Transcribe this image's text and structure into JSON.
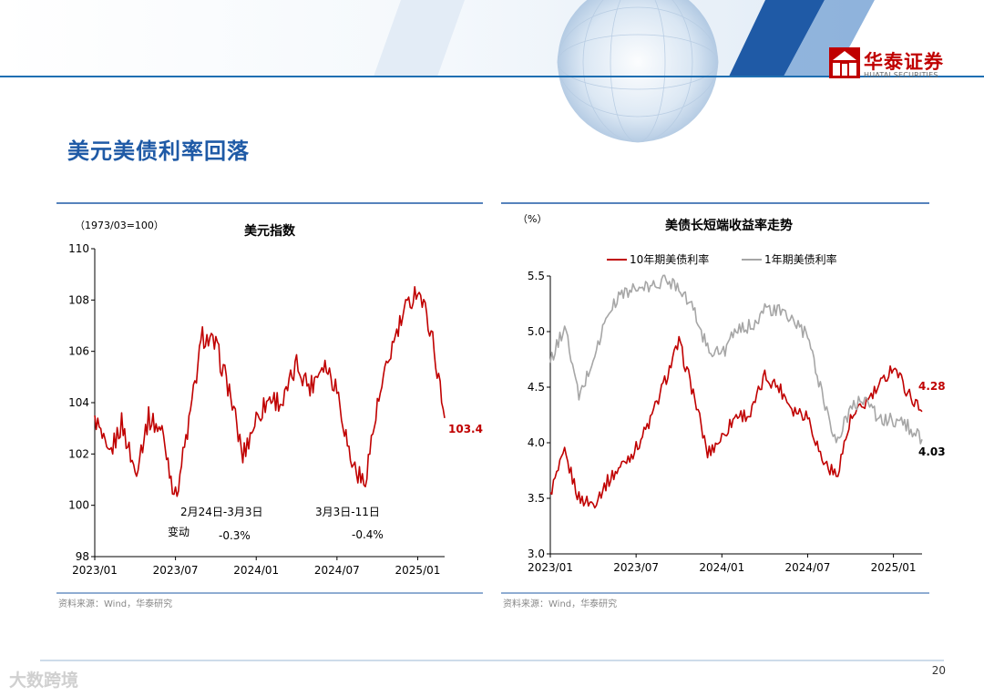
{
  "page": {
    "title": "美元美债利率回落",
    "number": "20",
    "watermark": "大数跨境",
    "logo": {
      "name": "华泰证券",
      "sub": "HUATAI SECURITIES"
    },
    "colors": {
      "accent": "#1f5aa6",
      "brand_red": "#c00000",
      "header_line": "#1f6fb2"
    }
  },
  "chart_data": [
    {
      "type": "line",
      "title": "美元指数",
      "unit_label": "（1973/03=100）",
      "ylim": [
        98,
        110
      ],
      "yticks": [
        "98",
        "100",
        "102",
        "104",
        "106",
        "108",
        "110"
      ],
      "x_range": [
        "2023-01",
        "2025-03"
      ],
      "xtick_labels": [
        "2023/01",
        "2023/07",
        "2024/01",
        "2024/07",
        "2025/01"
      ],
      "series": [
        {
          "color": "#c00000",
          "x": [
            "2023-01",
            "2023-02",
            "2023-03",
            "2023-04",
            "2023-05",
            "2023-06",
            "2023-07",
            "2023-08",
            "2023-09",
            "2023-10",
            "2023-11",
            "2023-12",
            "2024-01",
            "2024-02",
            "2024-03",
            "2024-04",
            "2024-05",
            "2024-06",
            "2024-07",
            "2024-08",
            "2024-09",
            "2024-10",
            "2024-11",
            "2024-12",
            "2025-01",
            "2025-02",
            "2025-03"
          ],
          "values": [
            103.5,
            101.8,
            103.2,
            101.3,
            103.4,
            102.9,
            100.3,
            103.2,
            106.6,
            106.2,
            104.5,
            101.9,
            103.4,
            104.2,
            104.0,
            105.5,
            104.6,
            105.6,
            104.6,
            101.8,
            100.8,
            103.8,
            106.0,
            107.5,
            108.5,
            106.8,
            103.4
          ]
        }
      ],
      "annotations": [
        {
          "lines": [
            "2月24日-3月3日",
            "变动",
            "-0.3%"
          ]
        },
        {
          "lines": [
            "3月3日-11日",
            "-0.4%"
          ]
        },
        {
          "text": "103.4"
        }
      ],
      "source": "资料来源：Wind，华泰研究"
    },
    {
      "type": "line",
      "title": "美债长短端收益率走势",
      "unit_label": "（%）",
      "ylim": [
        3.0,
        5.5
      ],
      "yticks": [
        "3.0",
        "3.5",
        "4.0",
        "4.5",
        "5.0",
        "5.5"
      ],
      "x_range": [
        "2023-01",
        "2025-03"
      ],
      "xtick_labels": [
        "2023/01",
        "2023/07",
        "2024/01",
        "2024/07",
        "2025/01"
      ],
      "legend_position": "top",
      "series": [
        {
          "name": "10年期美债利率",
          "color": "#c00000",
          "x": [
            "2023-01",
            "2023-02",
            "2023-03",
            "2023-04",
            "2023-05",
            "2023-06",
            "2023-07",
            "2023-08",
            "2023-09",
            "2023-10",
            "2023-11",
            "2023-12",
            "2024-01",
            "2024-02",
            "2024-03",
            "2024-04",
            "2024-05",
            "2024-06",
            "2024-07",
            "2024-08",
            "2024-09",
            "2024-10",
            "2024-11",
            "2024-12",
            "2025-01",
            "2025-02",
            "2025-03"
          ],
          "values": [
            3.55,
            3.9,
            3.5,
            3.45,
            3.65,
            3.8,
            3.95,
            4.2,
            4.55,
            4.9,
            4.45,
            3.9,
            4.05,
            4.25,
            4.25,
            4.6,
            4.5,
            4.3,
            4.25,
            3.85,
            3.7,
            4.2,
            4.35,
            4.5,
            4.7,
            4.45,
            4.28
          ]
        },
        {
          "name": "1年期美债利率",
          "color": "#a6a6a6",
          "x": [
            "2023-01",
            "2023-02",
            "2023-03",
            "2023-04",
            "2023-05",
            "2023-06",
            "2023-07",
            "2023-08",
            "2023-09",
            "2023-10",
            "2023-11",
            "2023-12",
            "2024-01",
            "2024-02",
            "2024-03",
            "2024-04",
            "2024-05",
            "2024-06",
            "2024-07",
            "2024-08",
            "2024-09",
            "2024-10",
            "2024-11",
            "2024-12",
            "2025-01",
            "2025-02",
            "2025-03"
          ],
          "values": [
            4.72,
            5.05,
            4.4,
            4.75,
            5.15,
            5.35,
            5.38,
            5.4,
            5.46,
            5.42,
            5.2,
            4.85,
            4.8,
            5.0,
            5.05,
            5.2,
            5.18,
            5.1,
            4.95,
            4.45,
            4.0,
            4.3,
            4.42,
            4.2,
            4.2,
            4.15,
            4.03
          ]
        }
      ],
      "annotations": [
        {
          "text": "4.28"
        },
        {
          "text": "4.03"
        }
      ],
      "source": "资料来源：Wind，华泰研究"
    }
  ]
}
